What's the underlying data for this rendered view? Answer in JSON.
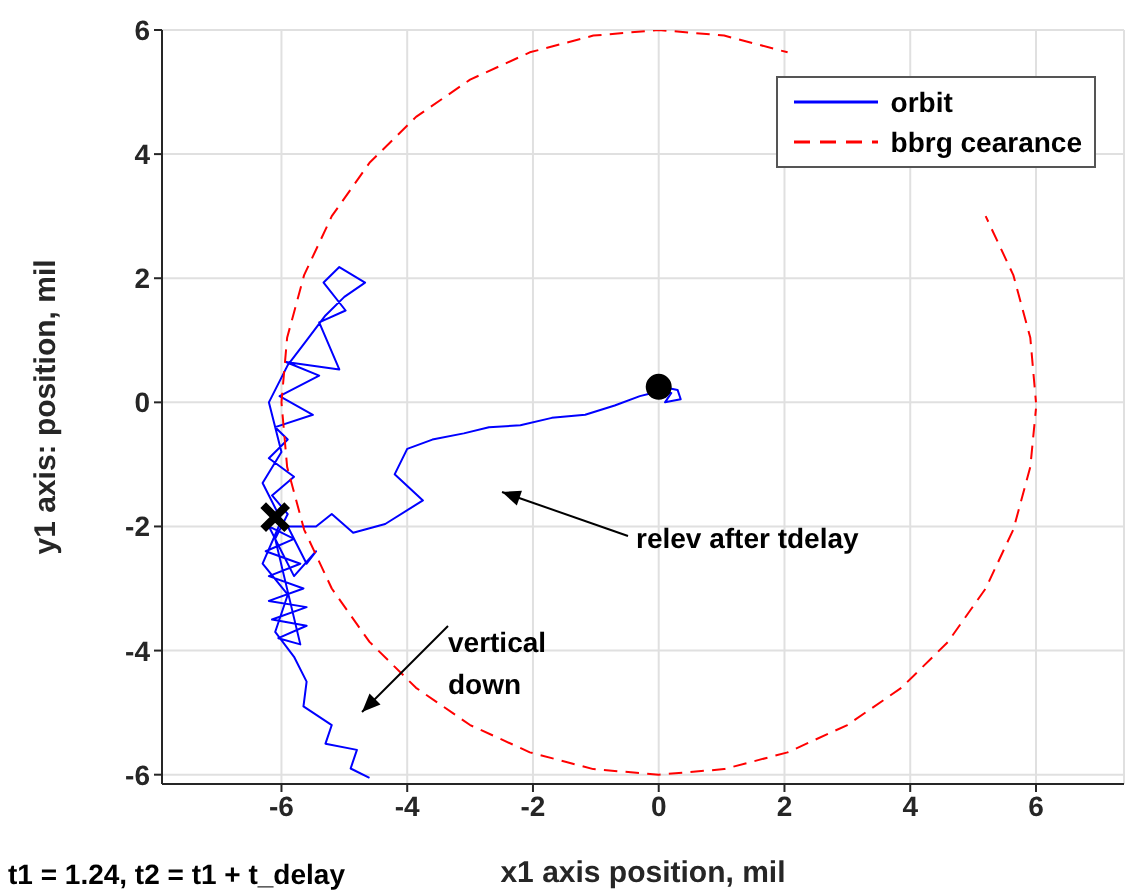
{
  "chart_data": {
    "type": "line",
    "xlabel": "x1 axis position, mil",
    "ylabel": "y1 axis: position, mil",
    "xlim": [
      -7.9,
      7.4
    ],
    "ylim": [
      -6.15,
      6
    ],
    "xticks": [
      -6,
      -4,
      -2,
      0,
      2,
      4,
      6
    ],
    "yticks": [
      -6,
      -4,
      -2,
      0,
      2,
      4,
      6
    ],
    "grid": true,
    "legend": "top right",
    "annotations": [
      "relev after tdelay",
      "vertical\ndown",
      "t1 = 1.24, t2 = t1 + t_delay"
    ],
    "series": [
      {
        "name": "orbit",
        "type": "line",
        "line_style": "solid",
        "color": "#0000ff",
        "x": [
          0.05,
          0.3,
          0.35,
          0.1,
          0.2,
          -0.1,
          -0.3,
          -0.7,
          -1.17,
          -1.7,
          -2.2,
          -2.7,
          -3.1,
          -3.6,
          -4.0,
          -4.2,
          -3.75,
          -4.35,
          -4.86,
          -5.2,
          -5.45,
          -5.9,
          -5.6,
          -5.45,
          -5.8,
          -6.2,
          -5.8,
          -6.25,
          -5.7,
          -6.2,
          -5.65,
          -6.2,
          -5.6,
          -6.15,
          -5.6,
          -6.05,
          -5.7,
          -6.1,
          -5.9,
          -6.15,
          -5.8,
          -6.2,
          -5.9,
          -6.1,
          -5.5,
          -6.03,
          -5.4,
          -5.93,
          -5.08,
          -5.4,
          -4.98,
          -5.33,
          -5.08,
          -4.67,
          -5.0,
          -5.3,
          -5.6,
          -5.9,
          -6.2,
          -6.0,
          -6.3,
          -6.0,
          -6.3,
          -5.9,
          -6.1,
          -5.8,
          -5.6,
          -5.65,
          -5.2,
          -5.3,
          -4.8,
          -4.9,
          -4.6
        ],
        "values": [
          0.25,
          0.2,
          0.05,
          0.0,
          0.15,
          0.15,
          0.1,
          -0.05,
          -0.2,
          -0.25,
          -0.37,
          -0.4,
          -0.5,
          -0.6,
          -0.75,
          -1.16,
          -1.58,
          -1.96,
          -2.1,
          -1.8,
          -2.0,
          -2.0,
          -2.6,
          -2.4,
          -2.8,
          -2.0,
          -2.2,
          -2.4,
          -2.6,
          -2.8,
          -3.0,
          -3.2,
          -3.3,
          -3.5,
          -3.6,
          -3.8,
          -3.9,
          -2.2,
          -1.8,
          -1.5,
          -1.2,
          -0.9,
          -0.6,
          -0.4,
          -0.2,
          0.1,
          0.43,
          0.65,
          0.53,
          1.29,
          1.48,
          1.93,
          2.18,
          1.93,
          1.7,
          1.4,
          1.0,
          0.6,
          0.0,
          -0.8,
          -1.3,
          -1.9,
          -2.6,
          -3.1,
          -3.7,
          -4.1,
          -4.5,
          -4.9,
          -5.2,
          -5.5,
          -5.6,
          -5.9,
          -6.05
        ]
      },
      {
        "name": "bbrg cearance",
        "type": "line",
        "line_style": "dashed",
        "color": "#ff0000",
        "x": [
          6,
          5.91,
          5.64,
          5.2,
          4.6,
          3.86,
          3,
          2.05,
          1.04,
          0,
          -1.04,
          -2.05,
          -3,
          -3.86,
          -4.6,
          -5.2,
          -5.64,
          -5.91,
          -6,
          -5.91,
          -5.64,
          -5.2,
          -4.6,
          -3.86,
          -3,
          -2.05,
          -1.04,
          0,
          1.04,
          2.05,
          3,
          3.86,
          4.6,
          5.2,
          5.64,
          5.91,
          6
        ],
        "values": [
          0,
          1.04,
          2.05,
          3,
          null,
          null,
          null,
          5.64,
          5.91,
          6,
          5.91,
          5.64,
          5.2,
          4.6,
          3.86,
          3,
          2.05,
          1.04,
          0,
          -1.04,
          -2.05,
          -3,
          -3.86,
          -4.6,
          -5.2,
          -5.64,
          -5.91,
          -6,
          -5.91,
          -5.64,
          -5.2,
          -4.6,
          -3.86,
          -3,
          -2.05,
          -1.04,
          -0.1
        ]
      },
      {
        "type": "scatter",
        "marker": "circle",
        "color": "#000000",
        "x": [
          0
        ],
        "values": [
          0.25
        ]
      },
      {
        "type": "scatter",
        "marker": "cross",
        "color": "#000000",
        "x": [
          -6.1
        ],
        "values": [
          -1.85
        ]
      }
    ]
  }
}
